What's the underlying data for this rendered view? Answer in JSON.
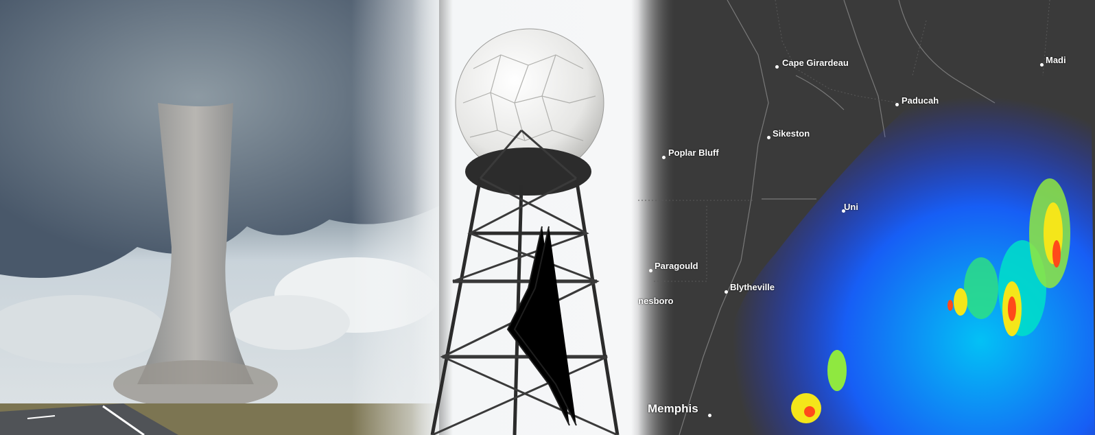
{
  "panels": {
    "tornado": {
      "label": ""
    },
    "radar_tower": {
      "label": ""
    },
    "radar_map": {
      "label": ""
    }
  },
  "map": {
    "cities": [
      {
        "name": "Cape Girardeau"
      },
      {
        "name": "Sikeston"
      },
      {
        "name": "Poplar Bluff"
      },
      {
        "name": "Paducah"
      },
      {
        "name": "Madi"
      },
      {
        "name": "Uni"
      },
      {
        "name": "Paragould"
      },
      {
        "name": "Blytheville"
      },
      {
        "name": "Jonesboro"
      },
      {
        "name": "Memphis"
      }
    ]
  },
  "colors": {
    "map_background": "#3a3a3a",
    "radar_low": "#1a2cff",
    "radar_mid": "#00c8ff",
    "radar_high": "#f4e61a",
    "radar_max": "#ff4a1a"
  }
}
